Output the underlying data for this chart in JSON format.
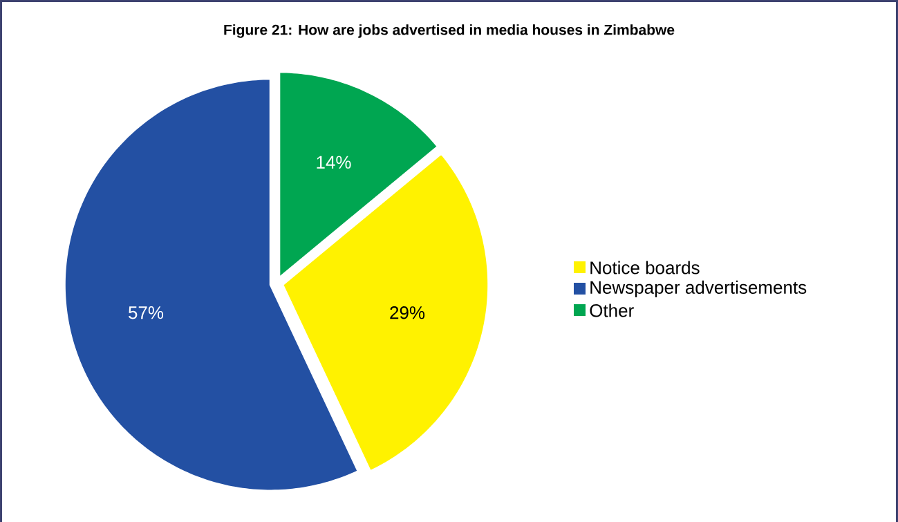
{
  "chart_data": {
    "type": "pie",
    "title": "Figure 21: How are jobs advertised in media houses in Zimbabwe",
    "categories": [
      "Notice boards",
      "Newspaper advertisements",
      "Other"
    ],
    "values": [
      29,
      57,
      14
    ],
    "colors": [
      "#fff200",
      "#2350a3",
      "#00a651"
    ],
    "value_labels": [
      "29%",
      "57%",
      "14%"
    ],
    "legend": "right"
  }
}
